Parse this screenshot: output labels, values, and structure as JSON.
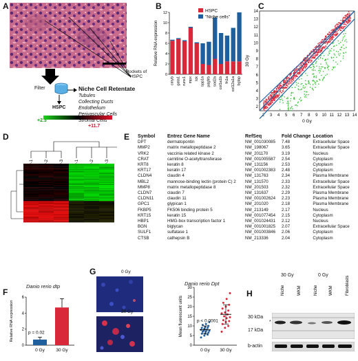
{
  "panels": {
    "a": "A",
    "b": "B",
    "c": "C",
    "d": "D",
    "e": "E",
    "f": "F",
    "g": "G",
    "h": "H"
  },
  "panel_a": {
    "pockets_label": "Pockets of HSPC",
    "filter_label": "Filter",
    "hspc_label": "HSPC",
    "retentate_title": "Niche Cell Retentate",
    "retentate_items": [
      "Tubules",
      "Collecting Ducts",
      "Endothelium",
      "Perivascular Cells",
      "Stromal Cells"
    ]
  },
  "panel_b": {
    "ylabel": "Relative RNA expression",
    "legend": [
      {
        "name": "HSPC",
        "color": "#d9283a"
      },
      {
        "name": "\"Niche cells\"",
        "color": "#1f5f9e"
      }
    ]
  },
  "panel_c": {
    "xlabel": "0 Gy",
    "ylabel": "30 Gy"
  },
  "panel_d": {
    "scale_low": "+2.3",
    "scale_high": "+11.7",
    "columns": [
      "30 Gy-1",
      "30 Gy-2",
      "30 Gy-3",
      "0 Gy-1",
      "0 Gy-2",
      "0 Gy-3"
    ]
  },
  "panel_e": {
    "headers": [
      "Symbol",
      "Entrez Gene Name",
      "RefSeq",
      "Fold Change",
      "Location"
    ],
    "rows": [
      [
        "DPT",
        "dermatopontin",
        "NM_001030085",
        "7.48",
        "Extracellular Space"
      ],
      [
        "MMP2",
        "matrix metallopeptidase 2",
        "NM_198067",
        "3.65",
        "Extracellular Space"
      ],
      [
        "VRK2",
        "vaccinia related kinase 2",
        "NM_201170",
        "3.19",
        "Nucleus"
      ],
      [
        "CRAT",
        "carnitine O-acetyltransferase",
        "NM_001005587",
        "2.54",
        "Cytoplasm"
      ],
      [
        "KRT8",
        "keratin 8",
        "NM_131156",
        "2.53",
        "Cytoplasm"
      ],
      [
        "KRT17",
        "keratin 17",
        "NM_001002383",
        "2.48",
        "Cytoplasm"
      ],
      [
        "CLDN4",
        "claudin 4",
        "NM_131763",
        "2.34",
        "Plasma Membrane"
      ],
      [
        "MBL2",
        "mannose-binding lectin (protein C) 2",
        "NM_131570",
        "2.33",
        "Extracellular Space"
      ],
      [
        "MMP8",
        "matrix metallopeptidase 8",
        "NM_201503",
        "2.32",
        "Extracellular Space"
      ],
      [
        "CLDN7",
        "claudin 7",
        "NM_131637",
        "2.29",
        "Plasma Membrane"
      ],
      [
        "CLDN11",
        "claudin 11",
        "NM_001002624",
        "2.23",
        "Plasma Membrane"
      ],
      [
        "GPC1",
        "glypican 1",
        "NM_201020",
        "2.18",
        "Plasma Membrane"
      ],
      [
        "FKBP5",
        "FK506 binding protein 5",
        "NM_213149",
        "2.17",
        "Nucleus"
      ],
      [
        "KRT15",
        "keratin 15",
        "NM_001077454",
        "2.15",
        "Cytoplasm"
      ],
      [
        "HBP1",
        "HMG-box transcription factor 1",
        "NM_001024431",
        "2.12",
        "Nucleus"
      ],
      [
        "BGN",
        "biglycan",
        "NM_001001825",
        "2.07",
        "Extracellular Space"
      ],
      [
        "SULF1",
        "sulfatase 1",
        "NM_001003846",
        "2.06",
        "Cytoplasm"
      ],
      [
        "CTSB",
        "cathepsin B",
        "NM_213336",
        "2.04",
        "Cytoplasm"
      ]
    ]
  },
  "panel_f": {
    "title": "Danio rerio dtp",
    "ylabel": "Relative RNA expression",
    "pvalue": "p = 0.02"
  },
  "panel_g": {
    "img_top_label": "0 Gy",
    "img_bottom_label": "30 Gy",
    "title": "Danio rerio Dpt",
    "ylabel": "Mean fluorescent units",
    "pvalue": "p < 0.0001"
  },
  "panel_h": {
    "group_30": "30 Gy",
    "group_0": "0 Gy",
    "lanes": [
      "Niche",
      "WKM",
      "Niche",
      "WKM",
      "Fibroblasts"
    ],
    "marker_30": "30 kDa",
    "marker_17": "17 kDa",
    "star": "*",
    "loading": "b-actin"
  },
  "chart_data": [
    {
      "type": "bar",
      "id": "B",
      "categories": [
        "cmyb",
        "gata1",
        "runx1",
        "mpx",
        "lck",
        "spp1a",
        "pdgfrb",
        "sod2a",
        "col1a1b",
        "fn1a",
        "col12a1a",
        "bglap"
      ],
      "series": [
        {
          "name": "HSPC",
          "values": [
            6.5,
            6.8,
            6.4,
            9.0,
            6.0,
            2.0,
            1.8,
            3.0,
            2.0,
            2.5,
            2.5,
            2.5
          ]
        },
        {
          "name": "\"Niche cells\"",
          "values": [
            0.2,
            0.2,
            0.2,
            0.2,
            0.2,
            4.0,
            4.5,
            8.0,
            6.0,
            5.0,
            6.5,
            9.5
          ]
        }
      ],
      "stacked": true,
      "ylim": [
        0,
        12
      ],
      "yticks": [
        0,
        2,
        4,
        6,
        8,
        10,
        12
      ],
      "ylabel": "Relative RNA expression"
    },
    {
      "type": "scatter",
      "id": "C",
      "xlabel": "0 Gy",
      "ylabel": "30 Gy",
      "xlim": [
        1.5,
        14
      ],
      "ylim": [
        1.5,
        14
      ],
      "xticks": [
        2,
        3,
        4,
        5,
        6,
        7,
        8,
        9,
        10,
        11,
        12,
        13,
        14
      ],
      "yticks": [
        2,
        3,
        4,
        5,
        6,
        7,
        8,
        9,
        10,
        11,
        12,
        13,
        14
      ]
    },
    {
      "type": "bar",
      "id": "F",
      "categories": [
        "0 Gy",
        "30 Gy"
      ],
      "values": [
        0.7,
        4.7
      ],
      "errors": [
        0.3,
        1.1
      ],
      "ylim": [
        0,
        6
      ],
      "yticks": [
        0,
        2,
        4,
        6
      ],
      "ylabel": "Relative RNA expression",
      "title": "Danio rerio dtp"
    },
    {
      "type": "scatter",
      "id": "G",
      "categories": [
        "0 Gy",
        "30 Gy"
      ],
      "series": [
        {
          "name": "0 Gy",
          "values": [
            4,
            5,
            5.5,
            6,
            6,
            6.5,
            7,
            7,
            7.5,
            7.5,
            8,
            8,
            8.5,
            9,
            9,
            9.5,
            10,
            10.5,
            11,
            12
          ],
          "mean": 8,
          "sd": 2
        },
        {
          "name": "30 Gy",
          "values": [
            7,
            9,
            10,
            11,
            12,
            12.5,
            13,
            14,
            14.5,
            15,
            16,
            16.5,
            17,
            18,
            19,
            20,
            21,
            22,
            24,
            27
          ],
          "mean": 16,
          "sd": 5
        }
      ],
      "ylim": [
        0,
        30
      ],
      "yticks": [
        0,
        5,
        10,
        15,
        20,
        25,
        30
      ],
      "ylabel": "Mean fluorescent units",
      "title": "Danio rerio Dpt"
    }
  ]
}
